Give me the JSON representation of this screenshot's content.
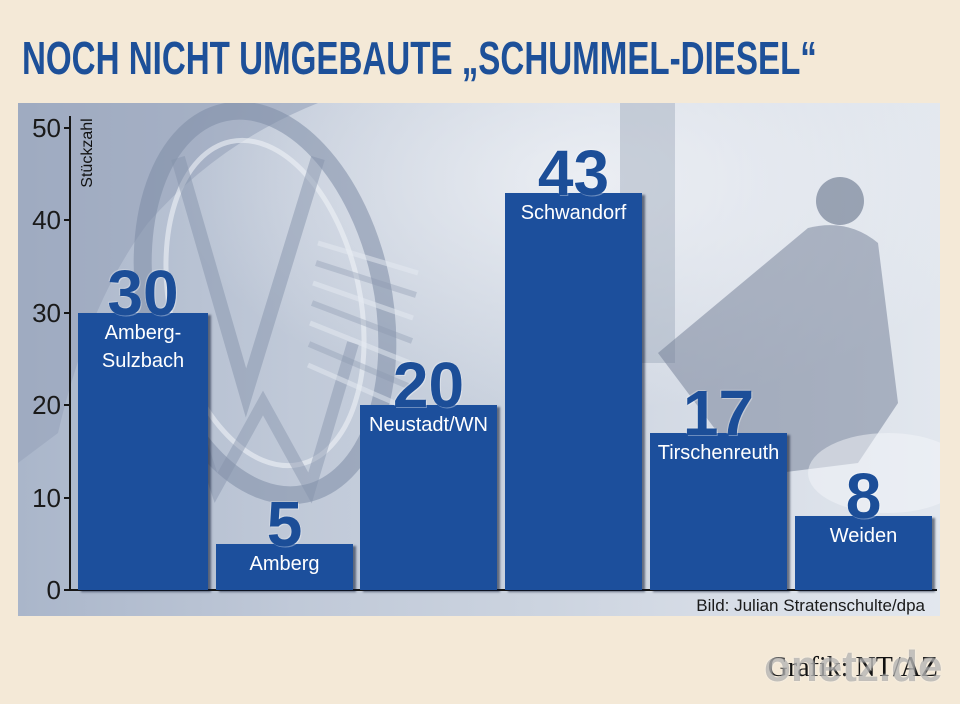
{
  "colors": {
    "background": "#f4e9d7",
    "title": "#1d5099",
    "bar": "#1c4f9c",
    "value": "#1c4e98",
    "bar_label": "#ffffff",
    "axis": "#161616"
  },
  "chart_data": {
    "type": "bar",
    "title": "NOCH NICHT UMGEBAUTE „SCHUMMEL-DIESEL“",
    "categories": [
      "Amberg-Sulzbach",
      "Amberg",
      "Neustadt/WN",
      "Schwandorf",
      "Tirschenreuth",
      "Weiden"
    ],
    "values": [
      30,
      5,
      20,
      43,
      17,
      8
    ],
    "ylabel": "Stückzahl",
    "ylim": [
      0,
      50
    ],
    "yticks": [
      0,
      10,
      20,
      30,
      40,
      50
    ],
    "grid": false,
    "data_labels": true
  },
  "credit": "Bild: Julian Stratenschulte/dpa",
  "footer": {
    "source": "Grafik: NT/AZ",
    "watermark": "onetz.de"
  }
}
